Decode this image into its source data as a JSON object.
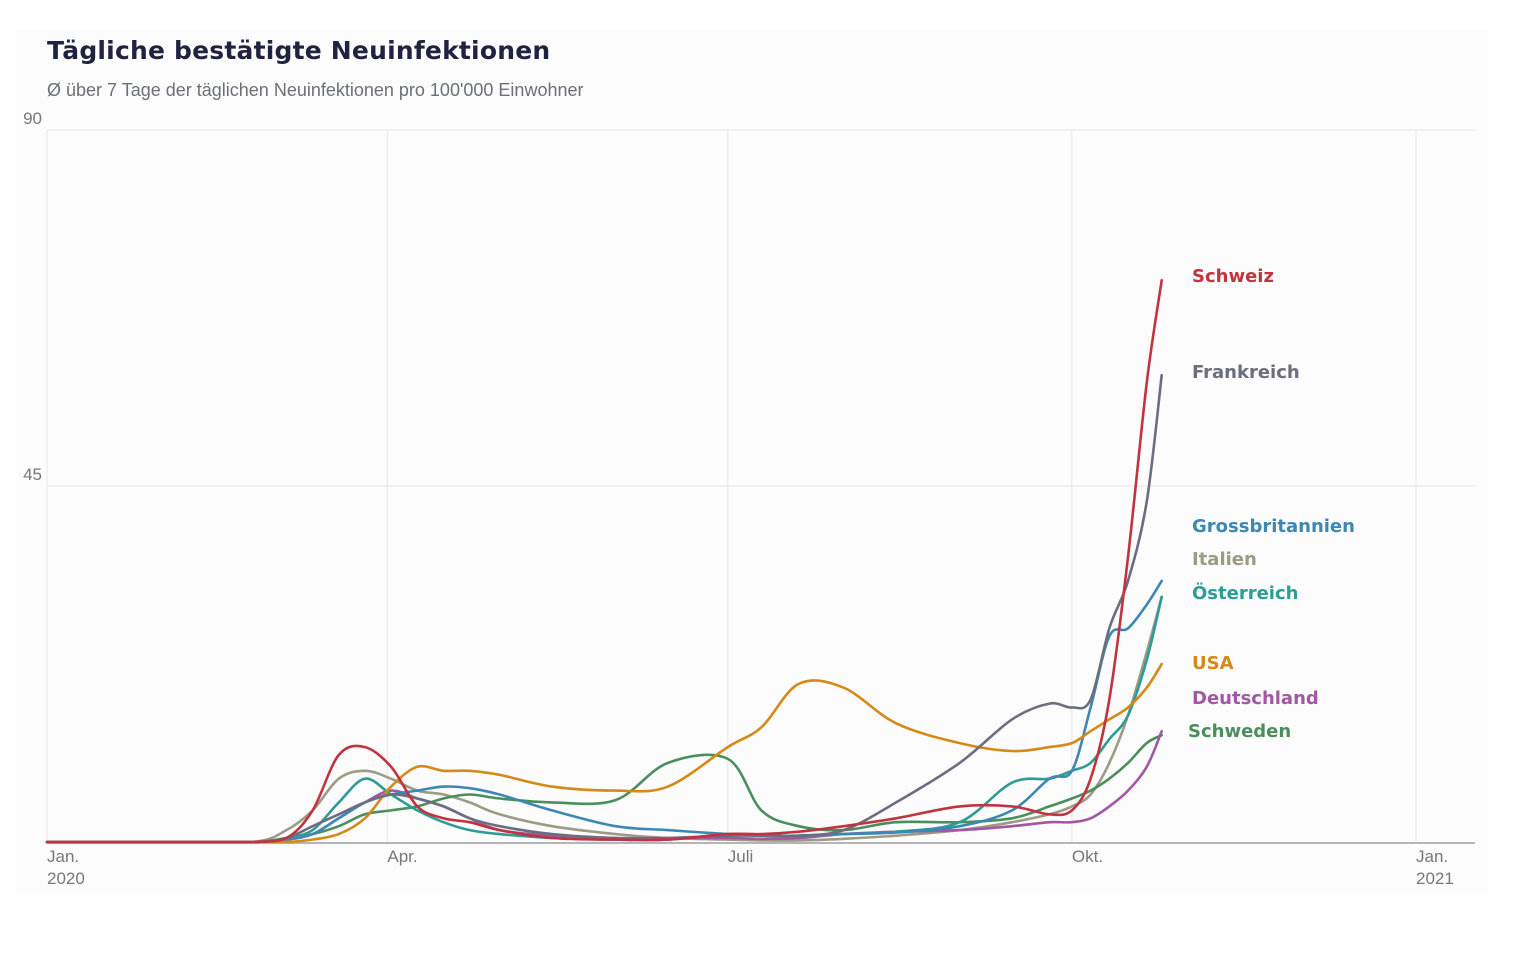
{
  "chart_data": {
    "type": "line",
    "title": "Tägliche bestätigte Neuinfektionen",
    "subtitle": "Ø über 7 Tage der täglichen Neuinfektionen pro 100'000 Einwohner",
    "xlabel": "",
    "ylabel": "",
    "ylim": [
      0,
      90
    ],
    "yticks": [
      {
        "value": 45,
        "label": "45"
      },
      {
        "value": 90,
        "label": "90"
      }
    ],
    "xlim": [
      "2020-01-01",
      "2021-01-01"
    ],
    "xticks": [
      {
        "date": "2020-01-01",
        "label": [
          "Jan.",
          "2020"
        ]
      },
      {
        "date": "2020-04-01",
        "label": [
          "Apr."
        ]
      },
      {
        "date": "2020-07-01",
        "label": [
          "Juli"
        ]
      },
      {
        "date": "2020-10-01",
        "label": [
          "Okt."
        ]
      },
      {
        "date": "2021-01-01",
        "label": [
          "Jan.",
          "2021"
        ]
      }
    ],
    "grid": true,
    "legend": "direct labels at line ends (right)",
    "x": [
      "2020-01-01",
      "2020-02-01",
      "2020-02-25",
      "2020-03-05",
      "2020-03-12",
      "2020-03-19",
      "2020-03-26",
      "2020-04-02",
      "2020-04-09",
      "2020-04-16",
      "2020-04-23",
      "2020-05-01",
      "2020-05-15",
      "2020-06-01",
      "2020-06-15",
      "2020-07-01",
      "2020-07-10",
      "2020-07-20",
      "2020-08-01",
      "2020-08-15",
      "2020-09-01",
      "2020-09-15",
      "2020-09-25",
      "2020-10-01",
      "2020-10-06",
      "2020-10-11",
      "2020-10-16",
      "2020-10-21",
      "2020-10-25"
    ],
    "series": [
      {
        "name": "Schweiz",
        "color": "#c0343f",
        "values": [
          0,
          0,
          0,
          0.5,
          4,
          11,
          12,
          9.5,
          4.5,
          3,
          2.5,
          1.5,
          0.5,
          0.3,
          0.3,
          1,
          1,
          1.3,
          2,
          3,
          4.5,
          4.5,
          3.5,
          4,
          8,
          18,
          36,
          58,
          71
        ]
      },
      {
        "name": "Frankreich",
        "color": "#6c6e80",
        "values": [
          0,
          0,
          0,
          0.5,
          2,
          3.5,
          5,
          6,
          5.5,
          4.5,
          3,
          2,
          1,
          0.5,
          0.5,
          0.8,
          0.8,
          0.8,
          1.5,
          5,
          10,
          15.5,
          17.5,
          17,
          18,
          27,
          33,
          43,
          59
        ]
      },
      {
        "name": "Grossbritannien",
        "color": "#3d87b4",
        "values": [
          0,
          0,
          0,
          0.3,
          1,
          3,
          5,
          6,
          6.5,
          7,
          6.8,
          6,
          4,
          2,
          1.5,
          1,
          0.8,
          0.8,
          1,
          1.2,
          2,
          4,
          8,
          9,
          17,
          26,
          27,
          30,
          33
        ]
      },
      {
        "name": "Italien",
        "color": "#9d9a86",
        "values": [
          0,
          0,
          0,
          1.5,
          4,
          8,
          9,
          8,
          6.5,
          6,
          5,
          3.5,
          2,
          1,
          0.5,
          0.3,
          0.2,
          0.2,
          0.4,
          0.8,
          1.5,
          2.5,
          3.5,
          4.5,
          6,
          10,
          16,
          24,
          31
        ]
      },
      {
        "name": "Österreich",
        "color": "#2d9c96",
        "values": [
          0,
          0,
          0,
          0.5,
          1.5,
          5,
          8,
          6,
          4,
          2.5,
          1.5,
          1,
          0.5,
          0.3,
          0.3,
          1,
          0.8,
          0.8,
          1,
          1.3,
          2.5,
          7.5,
          8,
          9,
          10,
          13,
          16,
          23,
          31
        ]
      },
      {
        "name": "USA",
        "color": "#d48918",
        "values": [
          0,
          0,
          0,
          0,
          0.3,
          1,
          3,
          7,
          9.5,
          9,
          9,
          8.5,
          7,
          6.5,
          7,
          12,
          14.5,
          20,
          19.5,
          15,
          12.5,
          11.5,
          12,
          12.5,
          14,
          15.5,
          17,
          19.5,
          22.5
        ]
      },
      {
        "name": "Deutschland",
        "color": "#a157a3",
        "values": [
          0,
          0,
          0,
          0.3,
          1,
          3,
          5,
          6.5,
          5.5,
          4.5,
          3,
          1.5,
          0.8,
          0.5,
          0.5,
          0.5,
          0.4,
          0.5,
          1,
          1.3,
          1.5,
          2,
          2.5,
          2.5,
          3,
          4.5,
          6.5,
          9.5,
          14
        ]
      },
      {
        "name": "Schweden",
        "color": "#4a8e5c",
        "values": [
          0,
          0,
          0,
          0.5,
          1,
          2,
          3.5,
          4,
          4.5,
          5.5,
          6,
          5.5,
          5,
          5.3,
          10,
          10.5,
          4,
          2,
          1.5,
          2.5,
          2.5,
          3,
          4.5,
          5.5,
          6.5,
          8,
          10,
          12.5,
          13.5
        ]
      }
    ]
  }
}
